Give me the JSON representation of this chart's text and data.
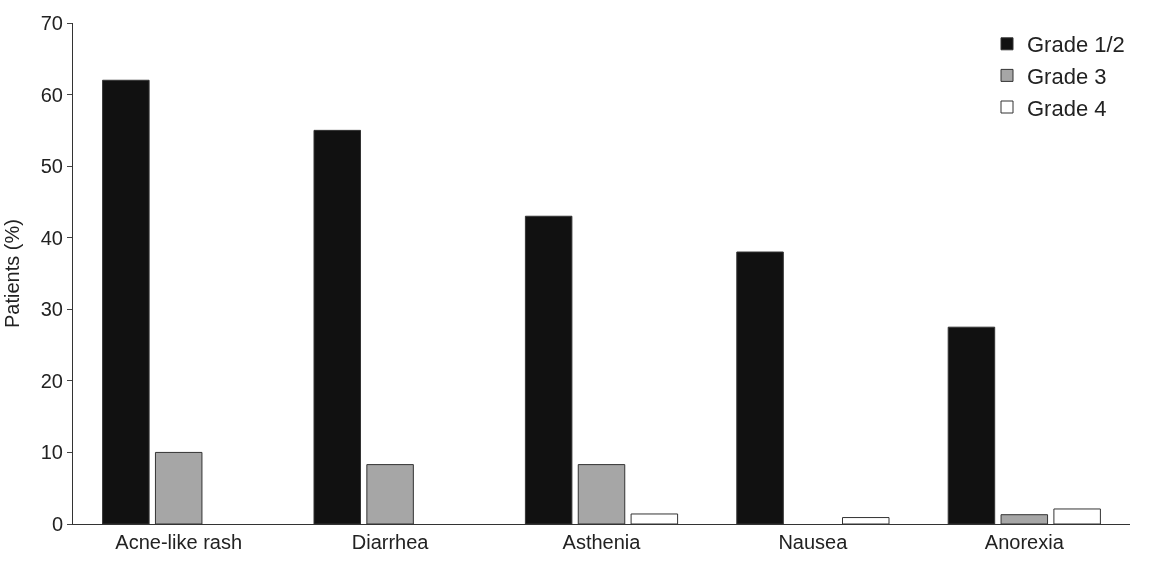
{
  "chart_data": {
    "type": "bar",
    "ylabel": "Patients (%)",
    "categories": [
      "Acne-like rash",
      "Diarrhea",
      "Asthenia",
      "Nausea",
      "Anorexia"
    ],
    "series": [
      {
        "name": "Grade 1/2",
        "color": "#111111",
        "values": [
          62,
          55,
          43,
          38,
          27.5
        ]
      },
      {
        "name": "Grade 3",
        "color": "#a6a6a6",
        "values": [
          10,
          8.3,
          8.3,
          null,
          1.3
        ]
      },
      {
        "name": "Grade 4",
        "color": "#ffffff",
        "values": [
          null,
          null,
          1.4,
          0.9,
          2.1
        ]
      }
    ],
    "ylim": [
      0,
      70
    ],
    "yticks": [
      0,
      10,
      20,
      30,
      40,
      50,
      60,
      70
    ],
    "legend": "top right"
  }
}
